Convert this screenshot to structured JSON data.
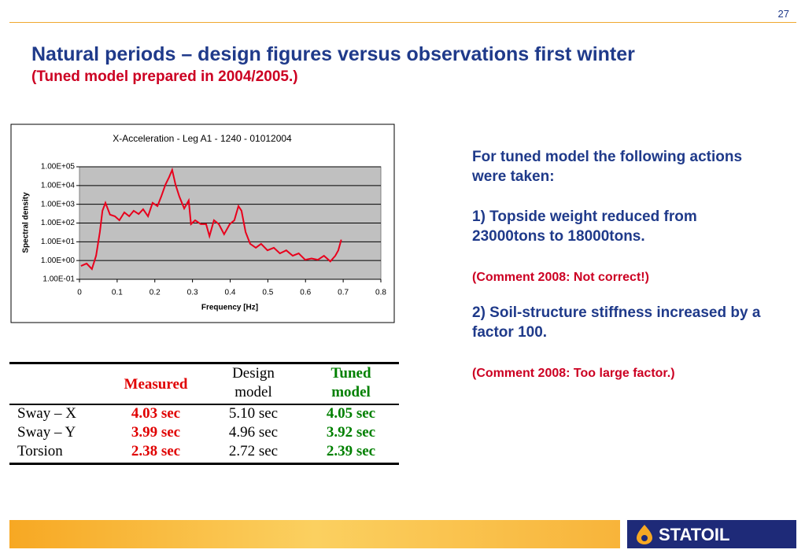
{
  "page_number": "27",
  "title": "Natural periods – design figures versus observations first winter",
  "subtitle": "(Tuned model prepared in 2004/2005.)",
  "chart_data": {
    "type": "line",
    "title": "X-Acceleration - Leg A1 - 1240 - 01012004",
    "xlabel": "Frequency [Hz]",
    "ylabel": "Spectral density",
    "x": [
      0.004,
      0.019,
      0.033,
      0.044,
      0.054,
      0.061,
      0.069,
      0.081,
      0.094,
      0.106,
      0.119,
      0.132,
      0.144,
      0.157,
      0.169,
      0.182,
      0.194,
      0.207,
      0.217,
      0.228,
      0.238,
      0.246,
      0.255,
      0.265,
      0.278,
      0.29,
      0.296,
      0.307,
      0.322,
      0.336,
      0.345,
      0.357,
      0.37,
      0.384,
      0.399,
      0.411,
      0.422,
      0.43,
      0.441,
      0.453,
      0.468,
      0.482,
      0.499,
      0.516,
      0.532,
      0.549,
      0.566,
      0.582,
      0.599,
      0.616,
      0.633,
      0.649,
      0.666,
      0.679,
      0.687,
      0.695
    ],
    "values": [
      0.51,
      0.69,
      0.35,
      1.8,
      33,
      450,
      1200,
      280,
      230,
      140,
      370,
      230,
      450,
      300,
      540,
      230,
      1200,
      800,
      2600,
      11000,
      28000,
      68000,
      11000,
      2600,
      600,
      1600,
      87,
      140,
      87,
      87,
      20,
      140,
      87,
      25,
      87,
      140,
      800,
      450,
      33,
      7.8,
      4.8,
      7.8,
      3.5,
      4.8,
      2.4,
      3.5,
      1.8,
      2.4,
      1.1,
      1.3,
      1.1,
      1.8,
      0.9,
      1.8,
      3.5,
      13
    ],
    "color": "#e8001c",
    "xlim": [
      0,
      0.8
    ],
    "xticks": [
      0,
      0.1,
      0.2,
      0.3,
      0.4,
      0.5,
      0.6,
      0.7,
      0.8
    ],
    "ylim": [
      0.1,
      100000
    ],
    "ylog": true,
    "grid": true,
    "yticks": [
      {
        "value": 0.1,
        "label": "1.00E-01"
      },
      {
        "value": 1,
        "label": "1.00E+00"
      },
      {
        "value": 10,
        "label": "1.00E+01"
      },
      {
        "value": 100,
        "label": "1.00E+02"
      },
      {
        "value": 1000,
        "label": "1.00E+03"
      },
      {
        "value": 10000,
        "label": "1.00E+04"
      },
      {
        "value": 100000,
        "label": "1.00E+05"
      }
    ]
  },
  "table": {
    "header": [
      "Measured",
      "Design model",
      "Tuned model"
    ],
    "rows": [
      [
        "Sway – X",
        "4.03 sec",
        "5.10 sec",
        "4.05 sec"
      ],
      [
        "Sway – Y",
        "3.99 sec",
        "4.96 sec",
        "3.92 sec"
      ],
      [
        "Torsion",
        "2.38 sec",
        "2.72 sec",
        "2.39 sec"
      ]
    ]
  },
  "paragraphs": [
    "For tuned model the following actions were taken:",
    "1) Topside weight reduced from 23000tons to 18000tons.",
    "(Comment 2008: Not correct!)",
    "2) Soil-structure stiffness increased by a factor 100.",
    "(Comment 2008: Too large factor.)"
  ],
  "logo": "STATOIL"
}
